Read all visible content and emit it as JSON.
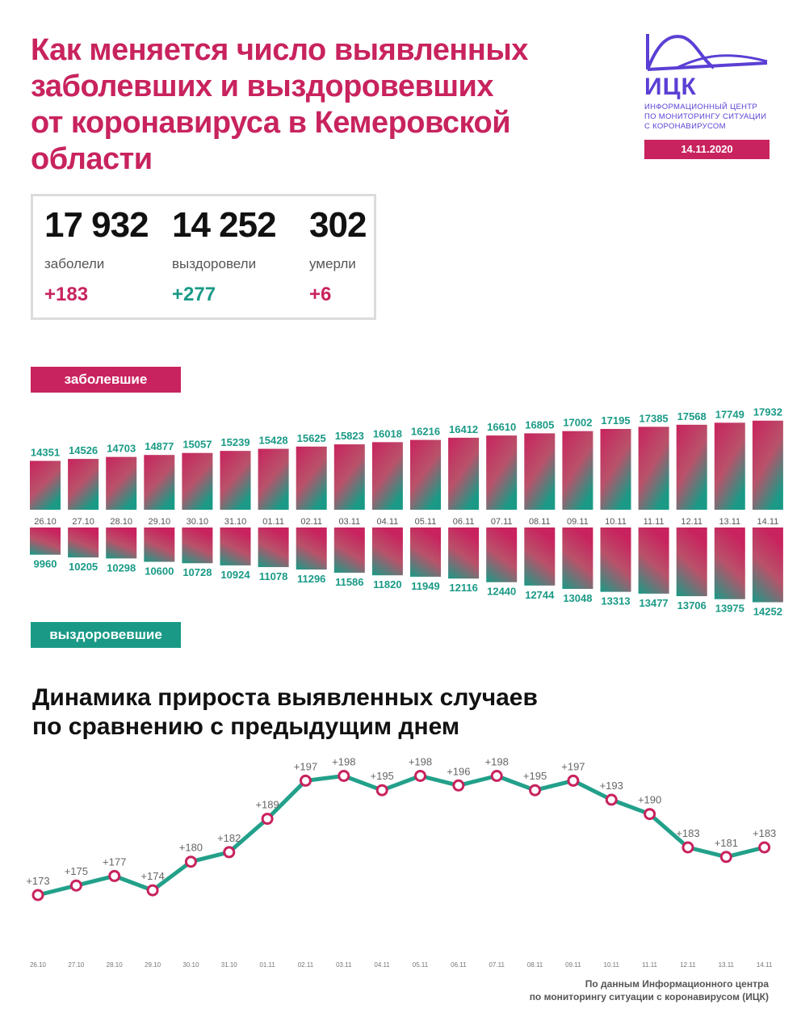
{
  "header": {
    "title_lines": [
      "Как меняется число выявленных",
      "заболевших и выздоровевших",
      "от коронавируса в Кемеровской",
      "области"
    ]
  },
  "logo": {
    "abbr": "ИЦК",
    "subtitle_lines": [
      "ИНФОРМАЦИОННЫЙ ЦЕНТР",
      "ПО МОНИТОРИНГУ СИТУАЦИИ",
      "С КОРОНАВИРУСОМ"
    ],
    "date": "14.11.2020"
  },
  "stats": [
    {
      "value": "17 932",
      "label": "заболели",
      "delta": "+183",
      "color": "#c8235e"
    },
    {
      "value": "14 252",
      "label": "выздоровели",
      "delta": "+277",
      "color": "#1a9a86"
    },
    {
      "value": "302",
      "label": "умерли",
      "delta": "+6",
      "color": "#c8235e"
    }
  ],
  "bands": {
    "cases": "заболевшие",
    "recovered": "выздоровевшие"
  },
  "colors": {
    "pink": "#c8235e",
    "teal": "#1a9a86",
    "line": "#22a08a"
  },
  "subtitle_lines": [
    "Динамика прироста выявленных случаев",
    "по сравнению с предыдущим днем"
  ],
  "source_lines": [
    "По данным Информационного центра",
    "по мониторингу ситуации с коронавирусом (ИЦК)"
  ],
  "chart_data": [
    {
      "type": "bar",
      "categories": [
        "26.10",
        "27.10",
        "28.10",
        "29.10",
        "30.10",
        "31.10",
        "01.11",
        "02.11",
        "03.11",
        "04.11",
        "05.11",
        "06.11",
        "07.11",
        "08.11",
        "09.11",
        "10.11",
        "11.11",
        "12.11",
        "13.11",
        "14.11"
      ],
      "series": [
        {
          "name": "заболевшие",
          "values": [
            14351,
            14526,
            14703,
            14877,
            15057,
            15239,
            15428,
            15625,
            15823,
            16018,
            16216,
            16412,
            16610,
            16805,
            17002,
            17195,
            17385,
            17568,
            17749,
            17932
          ]
        },
        {
          "name": "выздоровевшие",
          "values": [
            9960,
            10205,
            10298,
            10600,
            10728,
            10924,
            11078,
            11296,
            11586,
            11820,
            11949,
            12116,
            12440,
            12744,
            13048,
            13313,
            13477,
            13706,
            13975,
            14252
          ]
        }
      ]
    },
    {
      "type": "line",
      "x": [
        "26.10",
        "27.10",
        "28.10",
        "29.10",
        "30.10",
        "31.10",
        "01.11",
        "02.11",
        "03.11",
        "04.11",
        "05.11",
        "06.11",
        "07.11",
        "08.11",
        "09.11",
        "10.11",
        "11.11",
        "12.11",
        "13.11",
        "14.11"
      ],
      "values": [
        173,
        175,
        177,
        174,
        180,
        182,
        189,
        197,
        198,
        195,
        198,
        196,
        198,
        195,
        197,
        193,
        190,
        183,
        181,
        183
      ],
      "labels": [
        "+173",
        "+175",
        "+177",
        "+174",
        "+180",
        "+182",
        "+189",
        "+197",
        "+198",
        "+195",
        "+198",
        "+196",
        "+198",
        "+195",
        "+197",
        "+193",
        "+190",
        "+183",
        "+181",
        "+183"
      ]
    }
  ]
}
